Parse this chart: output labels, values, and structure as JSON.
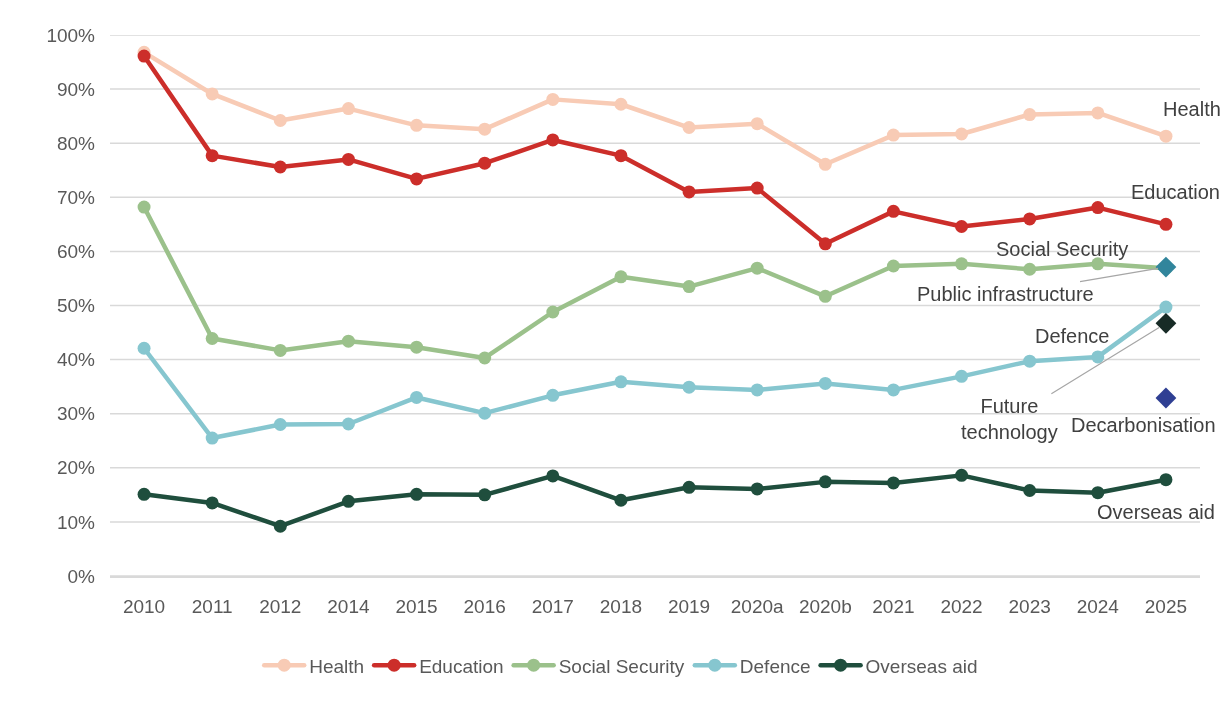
{
  "chart_data": {
    "type": "line",
    "categories": [
      "2010",
      "2011",
      "2012",
      "2014",
      "2015",
      "2016",
      "2017",
      "2018",
      "2019",
      "2020a",
      "2020b",
      "2021",
      "2022",
      "2023",
      "2024",
      "2025"
    ],
    "ylim": [
      0,
      100
    ],
    "yticks": [
      {
        "value": 0,
        "label": "0%"
      },
      {
        "value": 10,
        "label": "10%"
      },
      {
        "value": 20,
        "label": "20%"
      },
      {
        "value": 30,
        "label": "30%"
      },
      {
        "value": 40,
        "label": "40%"
      },
      {
        "value": 50,
        "label": "50%"
      },
      {
        "value": 60,
        "label": "60%"
      },
      {
        "value": 70,
        "label": "70%"
      },
      {
        "value": 80,
        "label": "80%"
      },
      {
        "value": 90,
        "label": "90%"
      },
      {
        "value": 100,
        "label": "100%"
      }
    ],
    "grid": "y",
    "legend": "bottom",
    "marker": "circle",
    "series": [
      {
        "name": "Health",
        "color": "#f8cbb5",
        "values": [
          96.8,
          89.1,
          84.2,
          86.4,
          83.3,
          82.6,
          88.1,
          87.2,
          82.9,
          83.6,
          76.1,
          81.5,
          81.7,
          85.3,
          85.6,
          81.3
        ]
      },
      {
        "name": "Education",
        "color": "#cc2e2a",
        "values": [
          96.1,
          77.7,
          75.6,
          77.0,
          73.4,
          76.3,
          80.6,
          77.7,
          71.0,
          71.7,
          61.4,
          67.4,
          64.6,
          66.0,
          68.1,
          65.0
        ]
      },
      {
        "name": "Social Security",
        "color": "#9bc18b",
        "values": [
          68.2,
          43.9,
          41.7,
          43.4,
          42.3,
          40.3,
          48.8,
          55.3,
          53.5,
          56.9,
          51.7,
          57.3,
          57.7,
          56.7,
          57.7,
          56.9
        ]
      },
      {
        "name": "Defence",
        "color": "#86c6cf",
        "values": [
          42.1,
          25.5,
          28.0,
          28.1,
          33.0,
          30.1,
          33.4,
          35.9,
          34.9,
          34.4,
          35.6,
          34.4,
          36.9,
          39.7,
          40.5,
          49.7
        ]
      },
      {
        "name": "Overseas aid",
        "color": "#1f4e3d",
        "values": [
          15.1,
          13.5,
          9.2,
          13.8,
          15.1,
          15.0,
          18.5,
          14.0,
          16.4,
          16.1,
          17.4,
          17.2,
          18.6,
          15.8,
          15.4,
          17.8
        ]
      },
      {
        "name": "Public infrastructure",
        "type": "scatter",
        "marker": "diamond",
        "color": "#31859c",
        "values": [
          null,
          null,
          null,
          null,
          null,
          null,
          null,
          null,
          null,
          null,
          null,
          null,
          null,
          null,
          null,
          57.1
        ]
      },
      {
        "name": "Future technology",
        "type": "scatter",
        "marker": "diamond",
        "color": "#172b26",
        "values": [
          null,
          null,
          null,
          null,
          null,
          null,
          null,
          null,
          null,
          null,
          null,
          null,
          null,
          null,
          null,
          46.7
        ]
      },
      {
        "name": "Decarbonisation",
        "type": "scatter",
        "marker": "diamond",
        "color": "#2f3f93",
        "values": [
          null,
          null,
          null,
          null,
          null,
          null,
          null,
          null,
          null,
          null,
          null,
          null,
          null,
          null,
          null,
          32.9
        ]
      }
    ]
  }
}
